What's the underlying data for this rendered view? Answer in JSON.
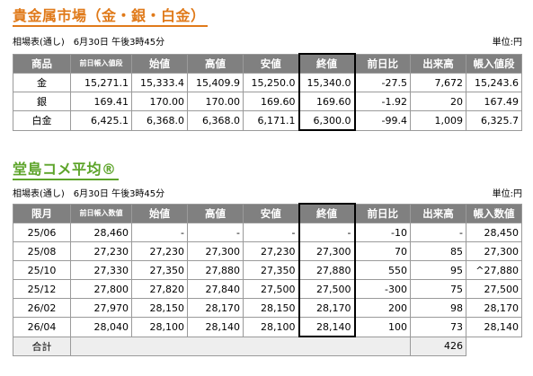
{
  "metals": {
    "title": "貴金属市場（金・銀・白金）",
    "meta": "相場表(通し)　6月30日 午後3時45分",
    "unit": "単位:円",
    "headers": [
      "商品",
      "前日帳入値段",
      "始値",
      "高値",
      "安値",
      "終値",
      "前日比",
      "出来高",
      "帳入値段"
    ],
    "rows": [
      [
        "金",
        "15,271.1",
        "15,333.4",
        "15,409.9",
        "15,250.0",
        "15,340.0",
        "-27.5",
        "7,672",
        "15,243.6"
      ],
      [
        "銀",
        "169.41",
        "170.00",
        "170.00",
        "169.60",
        "169.60",
        "-1.92",
        "20",
        "167.49"
      ],
      [
        "白金",
        "6,425.1",
        "6,368.0",
        "6,368.0",
        "6,171.1",
        "6,300.0",
        "-99.4",
        "1,009",
        "6,325.7"
      ]
    ]
  },
  "rice": {
    "title": "堂島コメ平均®",
    "meta": "相場表(通し)　6月30日 午後3時45分",
    "unit": "単位:円",
    "headers": [
      "限月",
      "前日帳入数値",
      "始値",
      "高値",
      "安値",
      "終値",
      "前日比",
      "出来高",
      "帳入数値"
    ],
    "rows": [
      [
        "25/06",
        "28,460",
        "-",
        "-",
        "-",
        "-",
        "-10",
        "-",
        "28,450"
      ],
      [
        "25/08",
        "27,230",
        "27,230",
        "27,300",
        "27,230",
        "27,300",
        "70",
        "85",
        "27,300"
      ],
      [
        "25/10",
        "27,330",
        "27,350",
        "27,880",
        "27,350",
        "27,880",
        "550",
        "95",
        "^27,880"
      ],
      [
        "25/12",
        "27,800",
        "27,820",
        "27,840",
        "27,500",
        "27,500",
        "-300",
        "75",
        "27,500"
      ],
      [
        "26/02",
        "27,970",
        "28,150",
        "28,170",
        "28,150",
        "28,170",
        "200",
        "98",
        "28,170"
      ],
      [
        "26/04",
        "28,040",
        "28,100",
        "28,140",
        "28,100",
        "28,140",
        "100",
        "73",
        "28,140"
      ]
    ],
    "total_label": "合計",
    "total_value": "426"
  }
}
